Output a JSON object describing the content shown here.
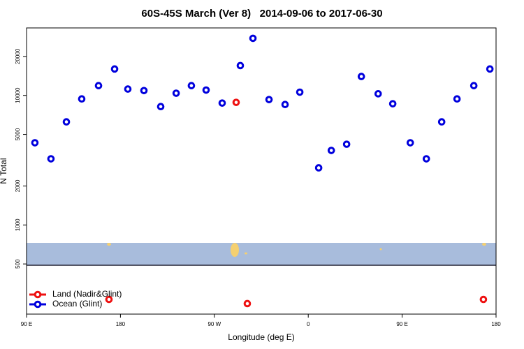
{
  "chart_data": {
    "type": "scatter",
    "title": "60S-45S March (Ver 8)   2014-09-06 to 2017-06-30",
    "x_label": "Longitude (deg E)",
    "y_label": "N Total",
    "xlim": [
      90,
      540
    ],
    "ylim": [
      205,
      33200
    ],
    "y_log": true,
    "xticks": [
      {
        "value": 90,
        "label": "90 E"
      },
      180,
      {
        "value": 270,
        "label": "90 W"
      },
      {
        "value": 360,
        "label": "0"
      },
      {
        "value": 450,
        "label": "90 E"
      },
      {
        "value": 540,
        "label": "180"
      }
    ],
    "yticks": [
      500,
      1000,
      2000,
      5000,
      10000,
      20000
    ],
    "legend": "bottom-left",
    "series": [
      {
        "name": "Land (Nadir&Glint)",
        "color": "#ee1111",
        "x": [
          290.9,
          169.0,
          301.6,
          527.9
        ],
        "values": [
          8840,
          266,
          247,
          266
        ]
      },
      {
        "name": "Ocean (Glint)",
        "color": "#0000dd",
        "x": [
          98.0,
          113.4,
          128.2,
          142.9,
          159.0,
          174.4,
          187.1,
          202.5,
          218.6,
          233.4,
          248.0,
          262.1,
          277.5,
          294.9,
          307.0,
          322.4,
          337.8,
          351.9,
          370.0,
          382.1,
          396.8,
          410.9,
          427.0,
          441.0,
          457.8,
          473.2,
          487.9,
          502.6,
          518.7,
          534.1
        ],
        "values": [
          4310,
          3240,
          6250,
          9400,
          11900,
          16000,
          11200,
          10900,
          8200,
          10400,
          11900,
          11000,
          8730,
          17000,
          27600,
          9290,
          8510,
          10600,
          2760,
          3760,
          4200,
          14000,
          10300,
          8620,
          4310,
          3240,
          6250,
          9400,
          11900,
          16000
        ]
      }
    ]
  }
}
